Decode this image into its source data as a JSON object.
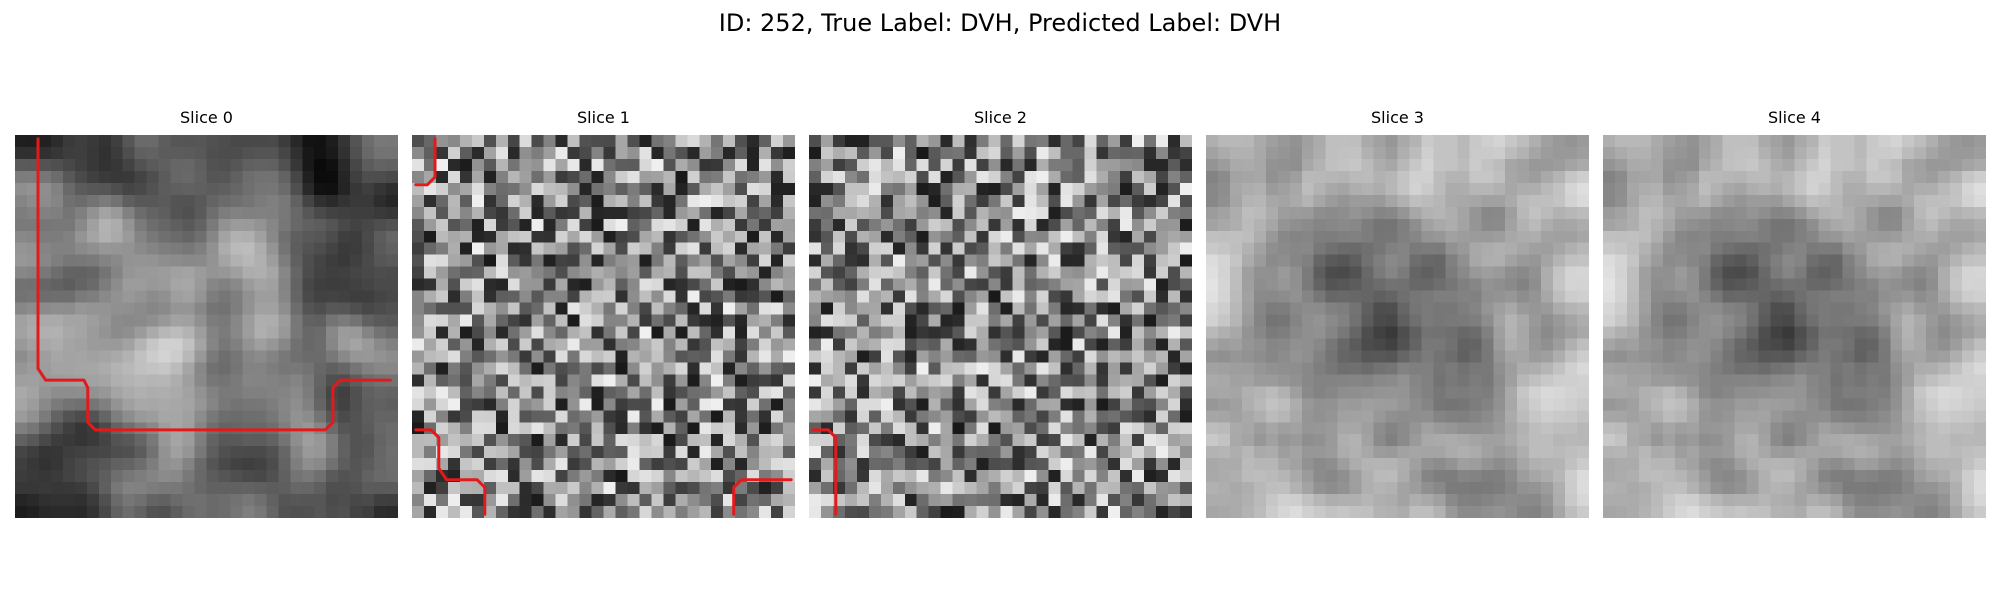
{
  "figure": {
    "title": "ID: 252, True Label: DVH, Predicted Label: DVH"
  },
  "slices": [
    {
      "title": "Slice 0",
      "seed": 11,
      "style": "smooth",
      "contours": [
        [
          [
            0.06,
            0.01
          ],
          [
            0.06,
            0.61
          ],
          [
            0.08,
            0.64
          ],
          [
            0.18,
            0.64
          ],
          [
            0.19,
            0.66
          ],
          [
            0.19,
            0.75
          ],
          [
            0.21,
            0.77
          ],
          [
            0.81,
            0.77
          ],
          [
            0.83,
            0.75
          ],
          [
            0.83,
            0.66
          ],
          [
            0.85,
            0.64
          ],
          [
            0.98,
            0.64
          ]
        ]
      ]
    },
    {
      "title": "Slice 1",
      "seed": 23,
      "style": "noisy",
      "contours": [
        [
          [
            0.06,
            0.01
          ],
          [
            0.06,
            0.11
          ],
          [
            0.04,
            0.13
          ],
          [
            0.01,
            0.13
          ]
        ],
        [
          [
            0.01,
            0.77
          ],
          [
            0.05,
            0.77
          ],
          [
            0.07,
            0.79
          ],
          [
            0.07,
            0.87
          ],
          [
            0.09,
            0.9
          ],
          [
            0.17,
            0.9
          ],
          [
            0.19,
            0.92
          ],
          [
            0.19,
            0.99
          ]
        ],
        [
          [
            0.84,
            0.99
          ],
          [
            0.84,
            0.92
          ],
          [
            0.86,
            0.9
          ],
          [
            0.99,
            0.9
          ]
        ]
      ]
    },
    {
      "title": "Slice 2",
      "seed": 37,
      "style": "noisy",
      "contours": [
        [
          [
            0.01,
            0.77
          ],
          [
            0.05,
            0.77
          ],
          [
            0.07,
            0.79
          ],
          [
            0.07,
            0.99
          ]
        ]
      ]
    },
    {
      "title": "Slice 3",
      "seed": 51,
      "style": "ring",
      "contours": []
    },
    {
      "title": "Slice 4",
      "seed": 51,
      "style": "ring",
      "contours": []
    }
  ],
  "colors": {
    "contour": "#e31a1c"
  }
}
